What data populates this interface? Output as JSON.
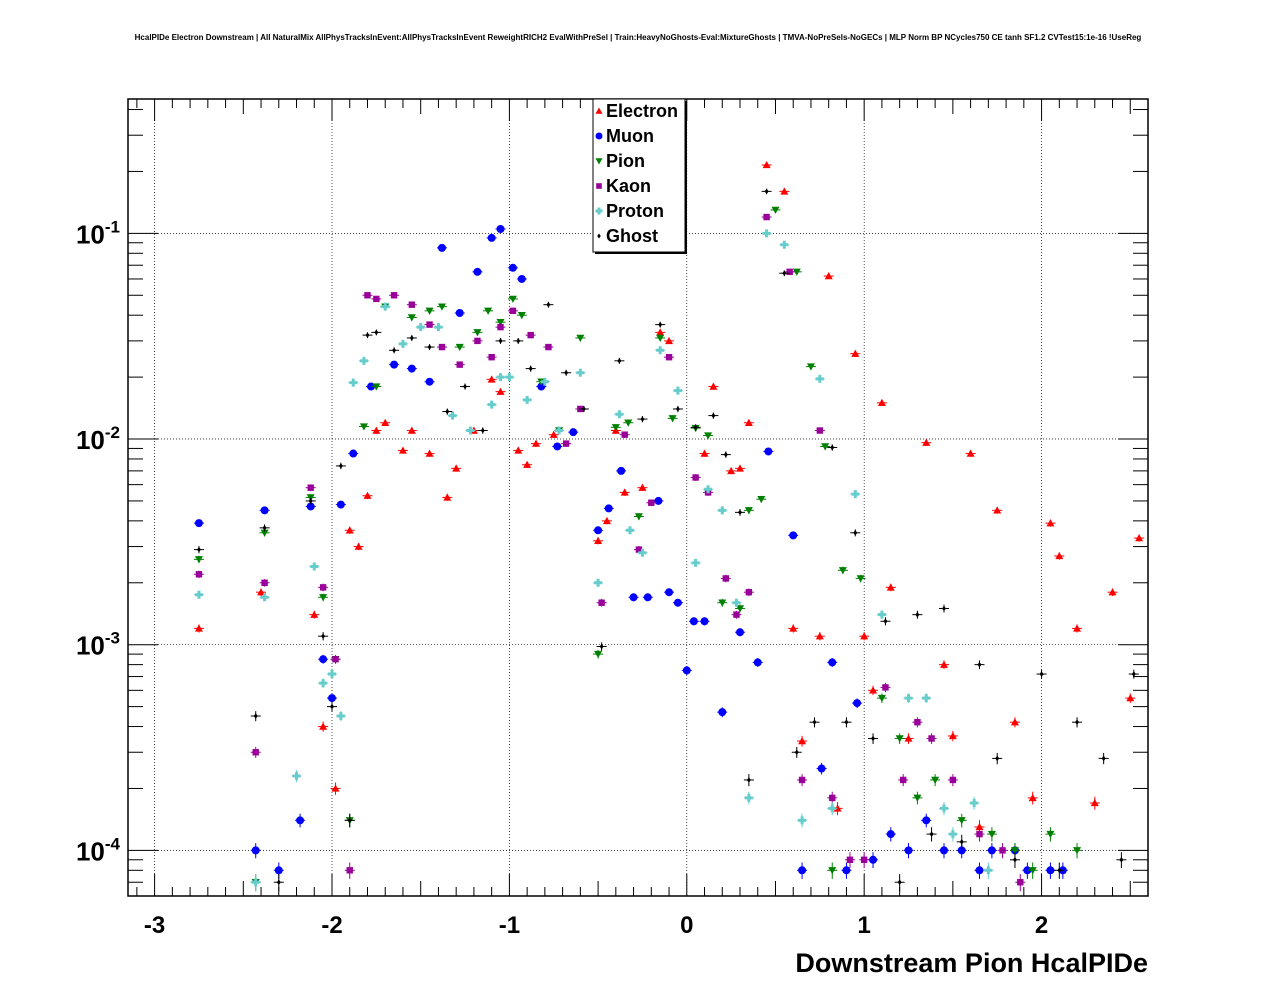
{
  "chart_data": {
    "type": "scatter",
    "title": "HcalPIDe Electron Downstream | All NaturalMix AllPhysTracksInEvent:AllPhysTracksInEvent ReweightRICH2 EvalWithPreSel | Train:HeavyNoGhosts-Eval:MixtureGhosts | TMVA-NoPreSels-NoGECs | MLP Norm BP NCycles750 CE tanh SF1.2 CVTest15:1e-16 !UseReg",
    "xlabel": "Downstream Pion HcalPIDe",
    "ylabel": "",
    "xlim": [
      -3.15,
      2.6
    ],
    "ylim": [
      6e-05,
      0.45
    ],
    "yscale": "log",
    "grid": true,
    "legend_position": "top-center",
    "x_ticks": [
      -3,
      -2,
      -1,
      0,
      1,
      2
    ],
    "x_tick_labels": [
      "-3",
      "-2",
      "-1",
      "0",
      "1",
      "2"
    ],
    "y_ticks": [
      0.0001,
      0.001,
      0.01,
      0.1
    ],
    "y_tick_labels": [
      {
        "base": "10",
        "exp": "-4"
      },
      {
        "base": "10",
        "exp": "-3"
      },
      {
        "base": "10",
        "exp": "-2"
      },
      {
        "base": "10",
        "exp": "-1"
      }
    ],
    "series": [
      {
        "name": "Electron",
        "color": "#ff0000",
        "marker": "triangle-up",
        "x": [
          -2.75,
          -2.4,
          -2.1,
          -2.05,
          -1.98,
          -1.9,
          -1.85,
          -1.8,
          -1.75,
          -1.7,
          -1.6,
          -1.55,
          -1.45,
          -1.35,
          -1.3,
          -1.2,
          -1.1,
          -1.05,
          -0.95,
          -0.9,
          -0.85,
          -0.75,
          -0.5,
          -0.45,
          -0.4,
          -0.35,
          -0.25,
          -0.15,
          -0.1,
          0.1,
          0.15,
          0.25,
          0.3,
          0.35,
          0.45,
          0.55,
          0.6,
          0.65,
          0.75,
          0.8,
          0.85,
          0.95,
          1.0,
          1.05,
          1.1,
          1.15,
          1.25,
          1.35,
          1.45,
          1.5,
          1.6,
          1.65,
          1.75,
          1.85,
          1.95,
          2.05,
          2.1,
          2.2,
          2.3,
          2.4,
          2.5,
          2.55
        ],
        "y": [
          0.0012,
          0.0018,
          0.0014,
          0.0004,
          0.0002,
          0.0036,
          0.003,
          0.0053,
          0.011,
          0.012,
          0.0088,
          0.011,
          0.0085,
          0.0052,
          0.0072,
          0.011,
          0.0195,
          0.017,
          0.0088,
          0.0075,
          0.0095,
          0.0105,
          0.0032,
          0.004,
          0.011,
          0.0055,
          0.0058,
          0.033,
          0.03,
          0.0085,
          0.018,
          0.007,
          0.0072,
          0.012,
          0.215,
          0.16,
          0.0012,
          0.00034,
          0.0011,
          0.062,
          0.00016,
          0.026,
          0.0011,
          0.0006,
          0.015,
          0.0019,
          0.00035,
          0.0096,
          0.0008,
          0.00036,
          0.0085,
          0.00013,
          0.0045,
          0.00042,
          0.00018,
          0.0039,
          0.0027,
          0.0012,
          0.00017,
          0.0018,
          0.00055,
          0.0033
        ]
      },
      {
        "name": "Muon",
        "color": "#0000ff",
        "marker": "circle",
        "x": [
          -2.75,
          -2.43,
          -2.38,
          -2.3,
          -2.18,
          -2.12,
          -2.05,
          -2.0,
          -1.95,
          -1.88,
          -1.78,
          -1.65,
          -1.55,
          -1.45,
          -1.38,
          -1.28,
          -1.18,
          -1.1,
          -1.05,
          -0.98,
          -0.93,
          -0.82,
          -0.73,
          -0.64,
          -0.5,
          -0.44,
          -0.37,
          -0.3,
          -0.22,
          -0.16,
          -0.1,
          -0.05,
          0.0,
          0.04,
          0.1,
          0.2,
          0.3,
          0.4,
          0.46,
          0.6,
          0.65,
          0.76,
          0.82,
          0.9,
          0.96,
          1.05,
          1.15,
          1.25,
          1.35,
          1.45,
          1.55,
          1.65,
          1.72,
          1.85,
          1.92,
          2.05,
          2.12
        ],
        "y": [
          0.0039,
          0.0001,
          0.0045,
          8e-05,
          0.00014,
          0.0047,
          0.00085,
          0.00055,
          0.0048,
          0.0085,
          0.018,
          0.023,
          0.022,
          0.019,
          0.085,
          0.041,
          0.065,
          0.095,
          0.105,
          0.068,
          0.06,
          0.018,
          0.0092,
          0.0108,
          0.0036,
          0.0046,
          0.007,
          0.0017,
          0.0017,
          0.005,
          0.0018,
          0.0016,
          0.00075,
          0.0013,
          0.0013,
          0.00047,
          0.00115,
          0.00082,
          0.0087,
          0.0034,
          8e-05,
          0.00025,
          0.00082,
          8e-05,
          0.00052,
          9e-05,
          0.00012,
          0.0001,
          0.00014,
          0.0001,
          0.0001,
          8e-05,
          0.0001,
          0.0001,
          8e-05,
          8e-05,
          8e-05
        ]
      },
      {
        "name": "Pion",
        "color": "#008000",
        "marker": "triangle-down",
        "x": [
          -2.75,
          -2.43,
          -2.38,
          -2.12,
          -2.05,
          -1.98,
          -1.9,
          -1.82,
          -1.75,
          -1.7,
          -1.55,
          -1.45,
          -1.38,
          -1.28,
          -1.18,
          -1.12,
          -1.05,
          -0.98,
          -0.93,
          -0.82,
          -0.72,
          -0.6,
          -0.5,
          -0.4,
          -0.33,
          -0.27,
          -0.15,
          -0.08,
          0.05,
          0.12,
          0.2,
          0.3,
          0.35,
          0.42,
          0.5,
          0.62,
          0.7,
          0.78,
          0.82,
          0.88,
          0.98,
          1.1,
          1.2,
          1.3,
          1.4,
          1.55,
          1.72,
          1.85,
          1.95,
          2.05,
          2.2
        ],
        "y": [
          0.0026,
          7e-05,
          0.0035,
          0.0052,
          0.0017,
          0.00085,
          0.00014,
          0.0115,
          0.018,
          0.044,
          0.039,
          0.042,
          0.044,
          0.028,
          0.033,
          0.042,
          0.037,
          0.048,
          0.04,
          0.019,
          0.011,
          0.031,
          0.0009,
          0.0114,
          0.012,
          0.0042,
          0.031,
          0.0126,
          0.0113,
          0.0104,
          0.0016,
          0.0015,
          0.0045,
          0.0051,
          0.13,
          0.065,
          0.0225,
          0.0092,
          8e-05,
          0.0023,
          0.0021,
          0.00055,
          0.00035,
          0.00018,
          0.00022,
          0.00014,
          0.00012,
          0.0001,
          8e-05,
          0.00012,
          0.0001
        ]
      },
      {
        "name": "Kaon",
        "color": "#990099",
        "marker": "square",
        "x": [
          -2.75,
          -2.43,
          -2.38,
          -2.12,
          -2.05,
          -1.98,
          -1.9,
          -1.8,
          -1.75,
          -1.65,
          -1.55,
          -1.45,
          -1.38,
          -1.28,
          -1.18,
          -1.1,
          -1.05,
          -0.98,
          -0.88,
          -0.78,
          -0.68,
          -0.6,
          -0.48,
          -0.35,
          -0.27,
          -0.2,
          -0.1,
          0.05,
          0.12,
          0.22,
          0.28,
          0.35,
          0.45,
          0.58,
          0.65,
          0.75,
          0.82,
          0.92,
          1.0,
          1.12,
          1.22,
          1.3,
          1.38,
          1.5,
          1.65,
          1.78,
          1.88
        ],
        "y": [
          0.0022,
          0.0003,
          0.002,
          0.0058,
          0.0019,
          0.00085,
          8e-05,
          0.05,
          0.048,
          0.05,
          0.045,
          0.036,
          0.028,
          0.023,
          0.03,
          0.025,
          0.035,
          0.042,
          0.032,
          0.028,
          0.0095,
          0.014,
          0.0016,
          0.0105,
          0.0029,
          0.0049,
          0.025,
          0.0065,
          0.0055,
          0.0021,
          0.0014,
          0.0018,
          0.12,
          0.065,
          0.00022,
          0.011,
          0.00018,
          9e-05,
          9e-05,
          0.00062,
          0.00022,
          0.00042,
          0.00035,
          0.00022,
          0.00012,
          0.0001,
          7e-05
        ]
      },
      {
        "name": "Proton",
        "color": "#66cccc",
        "marker": "plus",
        "x": [
          -2.75,
          -2.43,
          -2.38,
          -2.2,
          -2.1,
          -2.05,
          -2.0,
          -1.95,
          -1.88,
          -1.82,
          -1.7,
          -1.6,
          -1.5,
          -1.4,
          -1.32,
          -1.22,
          -1.1,
          -1.05,
          -1.0,
          -0.9,
          -0.8,
          -0.72,
          -0.6,
          -0.5,
          -0.38,
          -0.32,
          -0.25,
          -0.15,
          -0.05,
          0.05,
          0.12,
          0.2,
          0.28,
          0.35,
          0.45,
          0.55,
          0.65,
          0.75,
          0.82,
          0.95,
          1.1,
          1.25,
          1.35,
          1.45,
          1.5,
          1.62,
          1.7
        ],
        "y": [
          0.00175,
          7e-05,
          0.0017,
          0.00023,
          0.0024,
          0.00065,
          0.00072,
          0.00045,
          0.0188,
          0.024,
          0.044,
          0.029,
          0.035,
          0.035,
          0.013,
          0.011,
          0.0147,
          0.02,
          0.02,
          0.0155,
          0.019,
          0.011,
          0.021,
          0.002,
          0.0132,
          0.0036,
          0.0028,
          0.027,
          0.0172,
          0.0025,
          0.0057,
          0.0045,
          0.0016,
          0.00018,
          0.1,
          0.088,
          0.00014,
          0.0196,
          0.00016,
          0.0054,
          0.0014,
          0.00055,
          0.00055,
          0.00016,
          0.00012,
          0.00017,
          8e-05
        ]
      },
      {
        "name": "Ghost",
        "color": "#000000",
        "marker": "diamond",
        "x": [
          -2.75,
          -2.43,
          -2.38,
          -2.3,
          -2.12,
          -2.05,
          -2.0,
          -1.95,
          -1.9,
          -1.8,
          -1.75,
          -1.65,
          -1.55,
          -1.45,
          -1.35,
          -1.25,
          -1.15,
          -1.05,
          -0.95,
          -0.88,
          -0.78,
          -0.68,
          -0.58,
          -0.48,
          -0.38,
          -0.25,
          -0.15,
          -0.05,
          0.05,
          0.15,
          0.22,
          0.3,
          0.35,
          0.45,
          0.55,
          0.62,
          0.72,
          0.82,
          0.9,
          0.95,
          1.05,
          1.12,
          1.2,
          1.3,
          1.38,
          1.45,
          1.55,
          1.65,
          1.75,
          1.85,
          2.0,
          2.1,
          2.2,
          2.35,
          2.45,
          2.52
        ],
        "y": [
          0.0029,
          0.00045,
          0.0037,
          7e-05,
          0.005,
          0.0011,
          0.0005,
          0.0074,
          0.00014,
          0.032,
          0.033,
          0.027,
          0.031,
          0.028,
          0.0136,
          0.018,
          0.011,
          0.03,
          0.03,
          0.022,
          0.045,
          0.021,
          0.014,
          0.00098,
          0.024,
          0.0125,
          0.036,
          0.014,
          0.0114,
          0.013,
          0.0084,
          0.0044,
          0.00022,
          0.16,
          0.064,
          0.0003,
          0.00042,
          0.0091,
          0.00042,
          0.0035,
          0.00035,
          0.0013,
          7e-05,
          0.0014,
          0.00012,
          0.0015,
          0.00011,
          0.0008,
          0.00028,
          9e-05,
          0.00072,
          8e-05,
          0.00042,
          0.00028,
          9e-05,
          0.00072
        ]
      }
    ]
  }
}
